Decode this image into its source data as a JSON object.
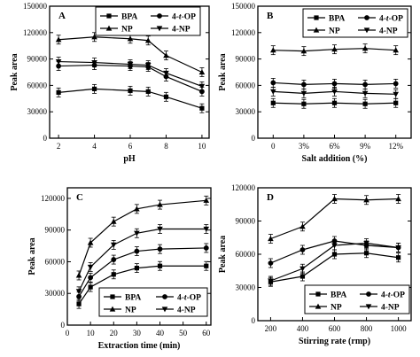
{
  "chart_data": [
    {
      "type": "line",
      "panel_label": "A",
      "xlabel": "pH",
      "ylabel": "Peak area",
      "x": [
        2,
        4,
        6,
        7,
        8,
        10
      ],
      "x_ticks": [
        2,
        4,
        6,
        8,
        10
      ],
      "x_tick_labels": [
        "2",
        "4",
        "6",
        "8",
        "10"
      ],
      "xlim": [
        1.5,
        10.4
      ],
      "ylim": [
        0,
        150000
      ],
      "y_ticks": [
        0,
        30000,
        60000,
        90000,
        120000,
        150000
      ],
      "y_tick_labels": [
        "0",
        "30000",
        "60000",
        "90000",
        "120000",
        "150000"
      ],
      "legend_position": "top-right",
      "series": [
        {
          "name": "BPA",
          "marker": "square",
          "values": [
            52000,
            56000,
            54000,
            53000,
            47000,
            34000
          ]
        },
        {
          "name": "4-t-OP",
          "marker": "circle",
          "values": [
            82000,
            83000,
            82000,
            81000,
            70000,
            53000
          ]
        },
        {
          "name": "NP",
          "marker": "triangle-up",
          "values": [
            112000,
            115000,
            113000,
            111000,
            94000,
            75000
          ]
        },
        {
          "name": "4-NP",
          "marker": "triangle-down",
          "values": [
            87000,
            86000,
            84000,
            83000,
            74000,
            59000
          ]
        }
      ]
    },
    {
      "type": "line",
      "panel_label": "B",
      "xlabel": "Salt addition (%)",
      "ylabel": "Peak area",
      "x": [
        0,
        3,
        6,
        9,
        12
      ],
      "x_ticks": [
        0,
        3,
        6,
        9,
        12
      ],
      "x_tick_labels": [
        "0",
        "3%",
        "6%",
        "9%",
        "12%"
      ],
      "xlim": [
        -1.5,
        13.5
      ],
      "ylim": [
        0,
        150000
      ],
      "y_ticks": [
        0,
        30000,
        60000,
        90000,
        120000,
        150000
      ],
      "y_tick_labels": [
        "0",
        "30000",
        "60000",
        "90000",
        "120000",
        "150000"
      ],
      "legend_position": "top-right",
      "series": [
        {
          "name": "BPA",
          "marker": "square",
          "values": [
            40000,
            39000,
            40000,
            39000,
            40000
          ]
        },
        {
          "name": "4-t-OP",
          "marker": "circle",
          "values": [
            63000,
            61000,
            62000,
            61000,
            62000
          ]
        },
        {
          "name": "NP",
          "marker": "triangle-up",
          "values": [
            100000,
            99000,
            101000,
            102000,
            100000
          ]
        },
        {
          "name": "4-NP",
          "marker": "triangle-down",
          "values": [
            53000,
            51000,
            53000,
            51000,
            50000
          ]
        }
      ]
    },
    {
      "type": "line",
      "panel_label": "C",
      "xlabel": "Extraction time (min)",
      "ylabel": "Peak area",
      "x": [
        5,
        10,
        20,
        30,
        40,
        60
      ],
      "x_ticks": [
        0,
        10,
        20,
        30,
        40,
        50,
        60
      ],
      "x_tick_labels": [
        "0",
        "10",
        "20",
        "30",
        "40",
        "50",
        "60"
      ],
      "xlim": [
        0,
        62
      ],
      "ylim": [
        0,
        130000
      ],
      "y_ticks": [
        0,
        30000,
        60000,
        90000,
        120000
      ],
      "y_tick_labels": [
        "0",
        "30000",
        "60000",
        "90000",
        "120000"
      ],
      "legend_position": "bottom-right",
      "series": [
        {
          "name": "BPA",
          "marker": "square",
          "values": [
            20000,
            36000,
            48000,
            54000,
            56000,
            56000
          ]
        },
        {
          "name": "4-t-OP",
          "marker": "circle",
          "values": [
            27000,
            45000,
            62000,
            70000,
            72000,
            73000
          ]
        },
        {
          "name": "NP",
          "marker": "triangle-up",
          "values": [
            47000,
            78000,
            98000,
            110000,
            114000,
            118000
          ]
        },
        {
          "name": "4-NP",
          "marker": "triangle-down",
          "values": [
            32000,
            55000,
            76000,
            87000,
            91000,
            91000
          ]
        }
      ]
    },
    {
      "type": "line",
      "panel_label": "D",
      "xlabel": "Stirring rate (rmp)",
      "ylabel": "Peak area",
      "x": [
        200,
        400,
        600,
        800,
        1000
      ],
      "x_ticks": [
        200,
        400,
        600,
        800,
        1000
      ],
      "x_tick_labels": [
        "200",
        "400",
        "600",
        "800",
        "1000"
      ],
      "xlim": [
        120,
        1080
      ],
      "ylim": [
        0,
        120000
      ],
      "y_ticks": [
        0,
        30000,
        60000,
        90000,
        120000
      ],
      "y_tick_labels": [
        "0",
        "30000",
        "60000",
        "90000",
        "120000"
      ],
      "legend_position": "bottom-right",
      "series": [
        {
          "name": "BPA",
          "marker": "square",
          "values": [
            35000,
            40000,
            60000,
            61000,
            57000
          ]
        },
        {
          "name": "4-t-OP",
          "marker": "circle",
          "values": [
            52000,
            64000,
            72000,
            68000,
            66000
          ]
        },
        {
          "name": "NP",
          "marker": "triangle-up",
          "values": [
            74000,
            85000,
            110000,
            109000,
            110000
          ]
        },
        {
          "name": "4-NP",
          "marker": "triangle-down",
          "values": [
            36000,
            47000,
            68000,
            70000,
            66000
          ]
        }
      ]
    }
  ],
  "legend_labels": {
    "bpa": "BPA",
    "op_prefix": "4-",
    "op_italic": "t",
    "op_suffix": "-OP",
    "np": "NP",
    "fournp": "4-NP"
  }
}
